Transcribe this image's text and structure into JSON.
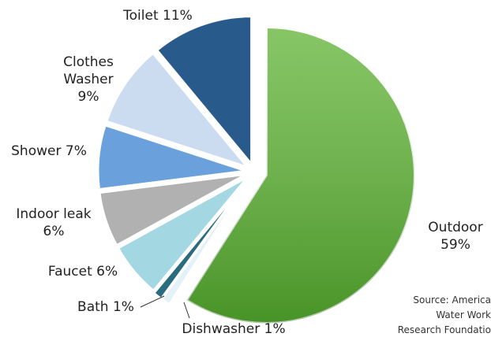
{
  "chart_data": {
    "type": "pie",
    "categories": [
      "Outdoor",
      "Dishwasher",
      "Bath",
      "Faucet",
      "Indoor leak",
      "Shower",
      "Clothes Washer",
      "Toilet"
    ],
    "values": [
      59,
      1,
      1,
      6,
      6,
      7,
      9,
      11
    ],
    "value_labels": [
      "59%",
      "1%",
      "1%",
      "6%",
      "6%",
      "7%",
      "9%",
      "11%"
    ],
    "colors": [
      "#5fb233",
      "#e3f1f8",
      "#2a6b7d",
      "#a3d8e2",
      "#b1b1b1",
      "#6aa0dc",
      "#cbdcf1",
      "#285a8b"
    ],
    "source": [
      "Source: America",
      "Water Work",
      "Research Foundatio"
    ]
  }
}
